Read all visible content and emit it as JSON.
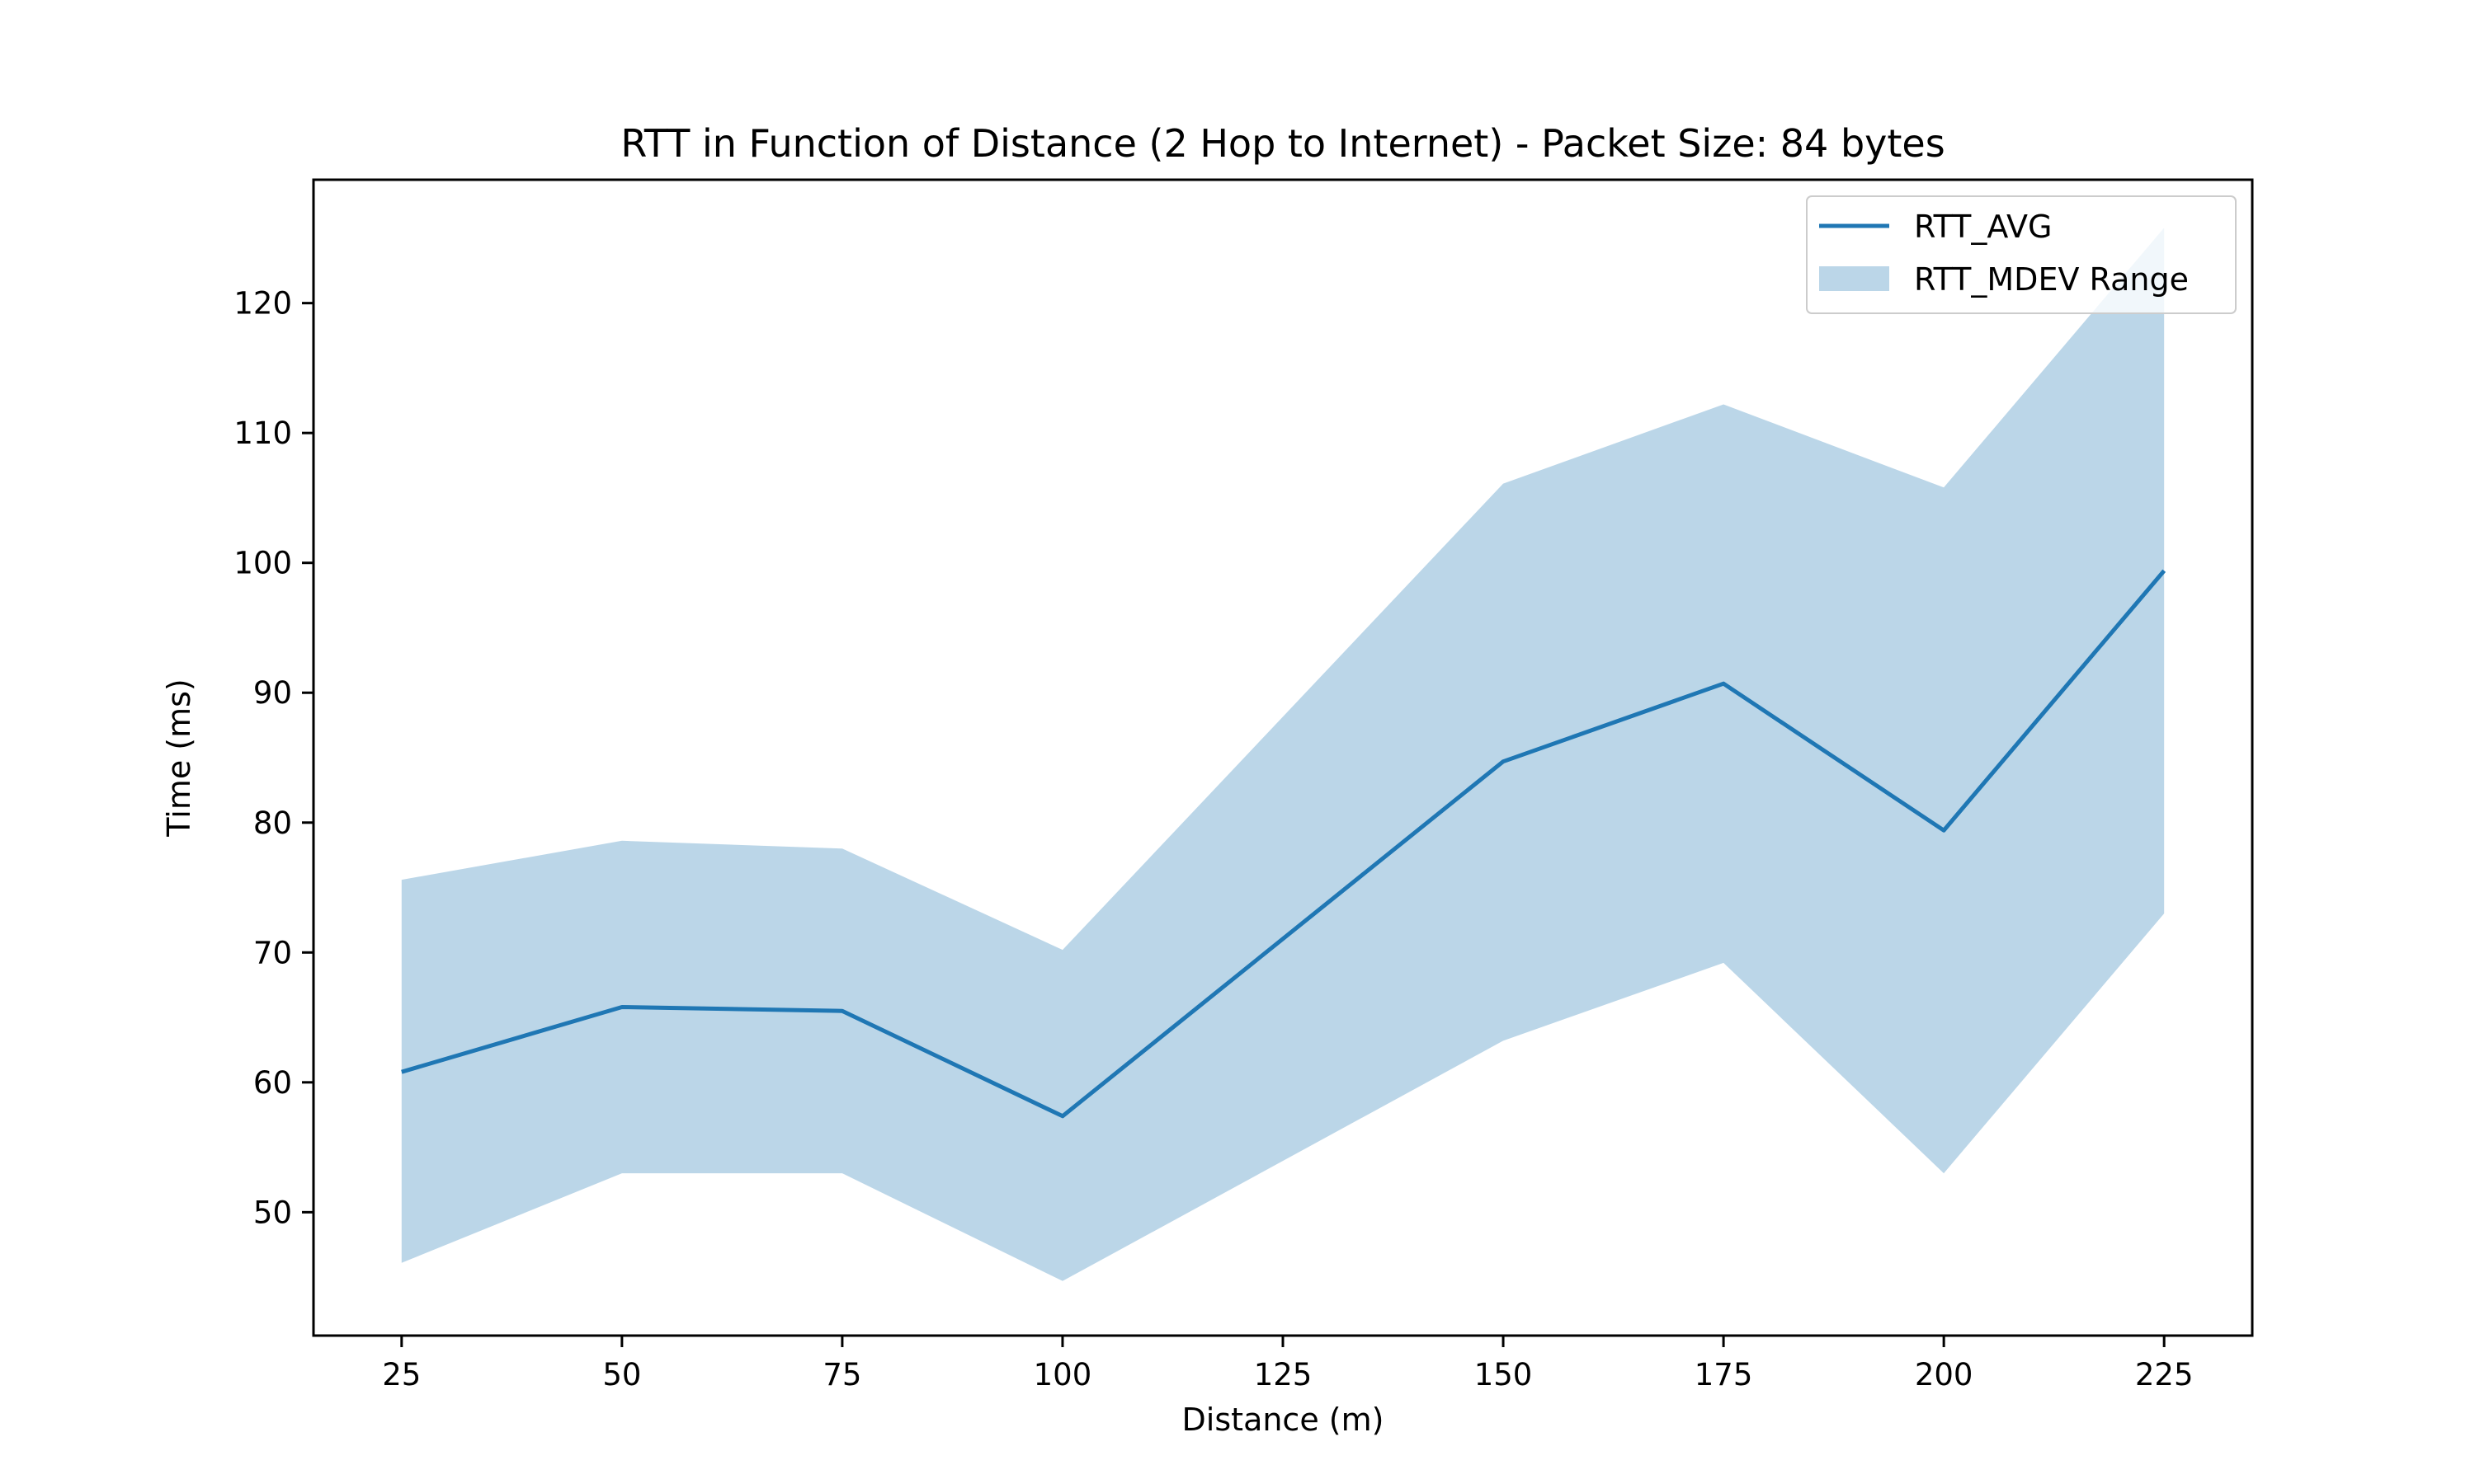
{
  "chart_data": {
    "type": "area",
    "title": "RTT in Function of Distance (2 Hop to Internet) - Packet Size: 84 bytes",
    "xlabel": "Distance (m)",
    "ylabel": "Time (ms)",
    "x": [
      25,
      50,
      75,
      100,
      150,
      175,
      200,
      225
    ],
    "xticks": [
      25,
      50,
      75,
      100,
      125,
      150,
      175,
      200,
      225
    ],
    "yticks": [
      50,
      60,
      70,
      80,
      90,
      100,
      110,
      120
    ],
    "xlim": [
      15,
      235
    ],
    "ylim": [
      40.5,
      129.5
    ],
    "series": [
      {
        "name": "RTT_AVG",
        "type": "line",
        "color": "#1f77b4",
        "values": [
          60.8,
          65.8,
          65.5,
          57.4,
          84.7,
          90.7,
          79.4,
          99.4
        ]
      },
      {
        "name": "RTT_MDEV Range",
        "type": "band",
        "color": "#1f77b4",
        "alpha": 0.3,
        "lower": [
          46.1,
          53.0,
          53.0,
          44.7,
          63.2,
          69.2,
          53.0,
          73.0
        ],
        "upper": [
          75.6,
          78.6,
          78.0,
          70.2,
          106.1,
          112.2,
          105.8,
          125.8
        ]
      }
    ],
    "grid": false,
    "legend": "top-right"
  }
}
